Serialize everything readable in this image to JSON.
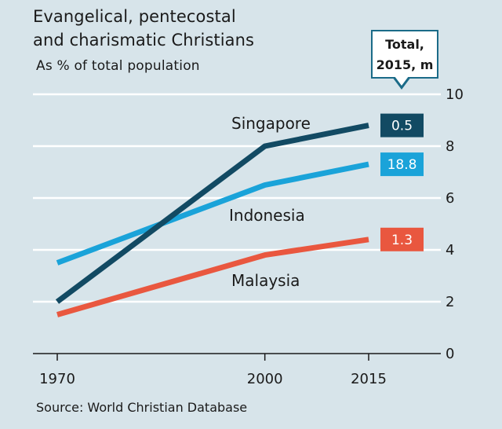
{
  "chart_data": {
    "type": "line",
    "title_lines": [
      "Evangelical, pentecostal",
      "and charismatic Christians"
    ],
    "subtitle": "As % of total population",
    "source": "Source: World Christian Database",
    "legend_title": "Total, 2015, m",
    "legend_title_lines": [
      "Total,",
      "2015, m"
    ],
    "x": [
      1970,
      2000,
      2015
    ],
    "x_tick_labels": [
      "1970",
      "2000",
      "2015"
    ],
    "xlim": [
      1970,
      2015
    ],
    "ylim": [
      0,
      10
    ],
    "y_ticks": [
      0,
      2,
      4,
      6,
      8,
      10
    ],
    "y_axis_side": "right",
    "grid": true,
    "series": [
      {
        "name": "Singapore",
        "values": [
          2.0,
          8.0,
          8.8
        ],
        "color": "#124a63",
        "total_2015_m": "0.5"
      },
      {
        "name": "Indonesia",
        "values": [
          3.5,
          6.5,
          7.3
        ],
        "color": "#1aa3d9",
        "total_2015_m": "18.8"
      },
      {
        "name": "Malaysia",
        "values": [
          1.5,
          3.8,
          4.4
        ],
        "color": "#e9573f",
        "total_2015_m": "1.3"
      }
    ]
  }
}
